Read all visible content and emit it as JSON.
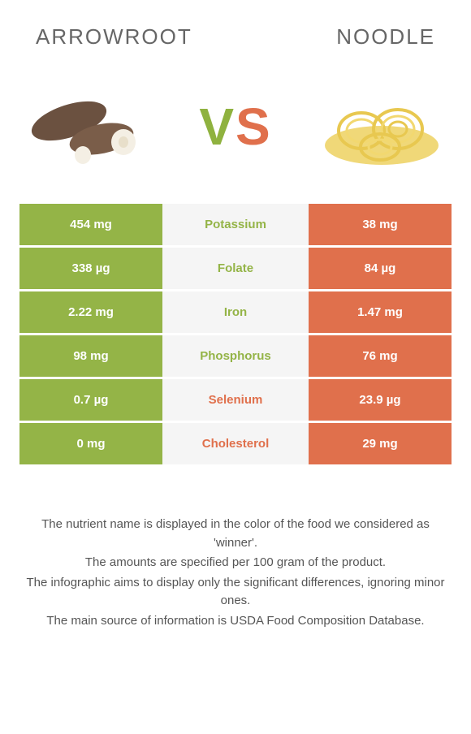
{
  "header": {
    "left_title": "Arrowroot",
    "right_title": "Noodle"
  },
  "vs": {
    "v": "V",
    "s": "S"
  },
  "colors": {
    "left_col": "#94b447",
    "right_col": "#e0704c",
    "mid_bg": "#f5f5f5",
    "mid_left_text": "#94b447",
    "mid_right_text": "#e0704c"
  },
  "table": {
    "rows": [
      {
        "left": "454 mg",
        "mid": "Potassium",
        "right": "38 mg",
        "winner": "left"
      },
      {
        "left": "338 µg",
        "mid": "Folate",
        "right": "84 µg",
        "winner": "left"
      },
      {
        "left": "2.22 mg",
        "mid": "Iron",
        "right": "1.47 mg",
        "winner": "left"
      },
      {
        "left": "98 mg",
        "mid": "Phosphorus",
        "right": "76 mg",
        "winner": "left"
      },
      {
        "left": "0.7 µg",
        "mid": "Selenium",
        "right": "23.9 µg",
        "winner": "right"
      },
      {
        "left": "0 mg",
        "mid": "Cholesterol",
        "right": "29 mg",
        "winner": "right"
      }
    ]
  },
  "footer": {
    "line1": "The nutrient name is displayed in the color of the food we considered as 'winner'.",
    "line2": "The amounts are specified per 100 gram of the product.",
    "line3": "The infographic aims to display only the significant differences, ignoring minor ones.",
    "line4": "The main source of information is USDA Food Composition Database."
  }
}
